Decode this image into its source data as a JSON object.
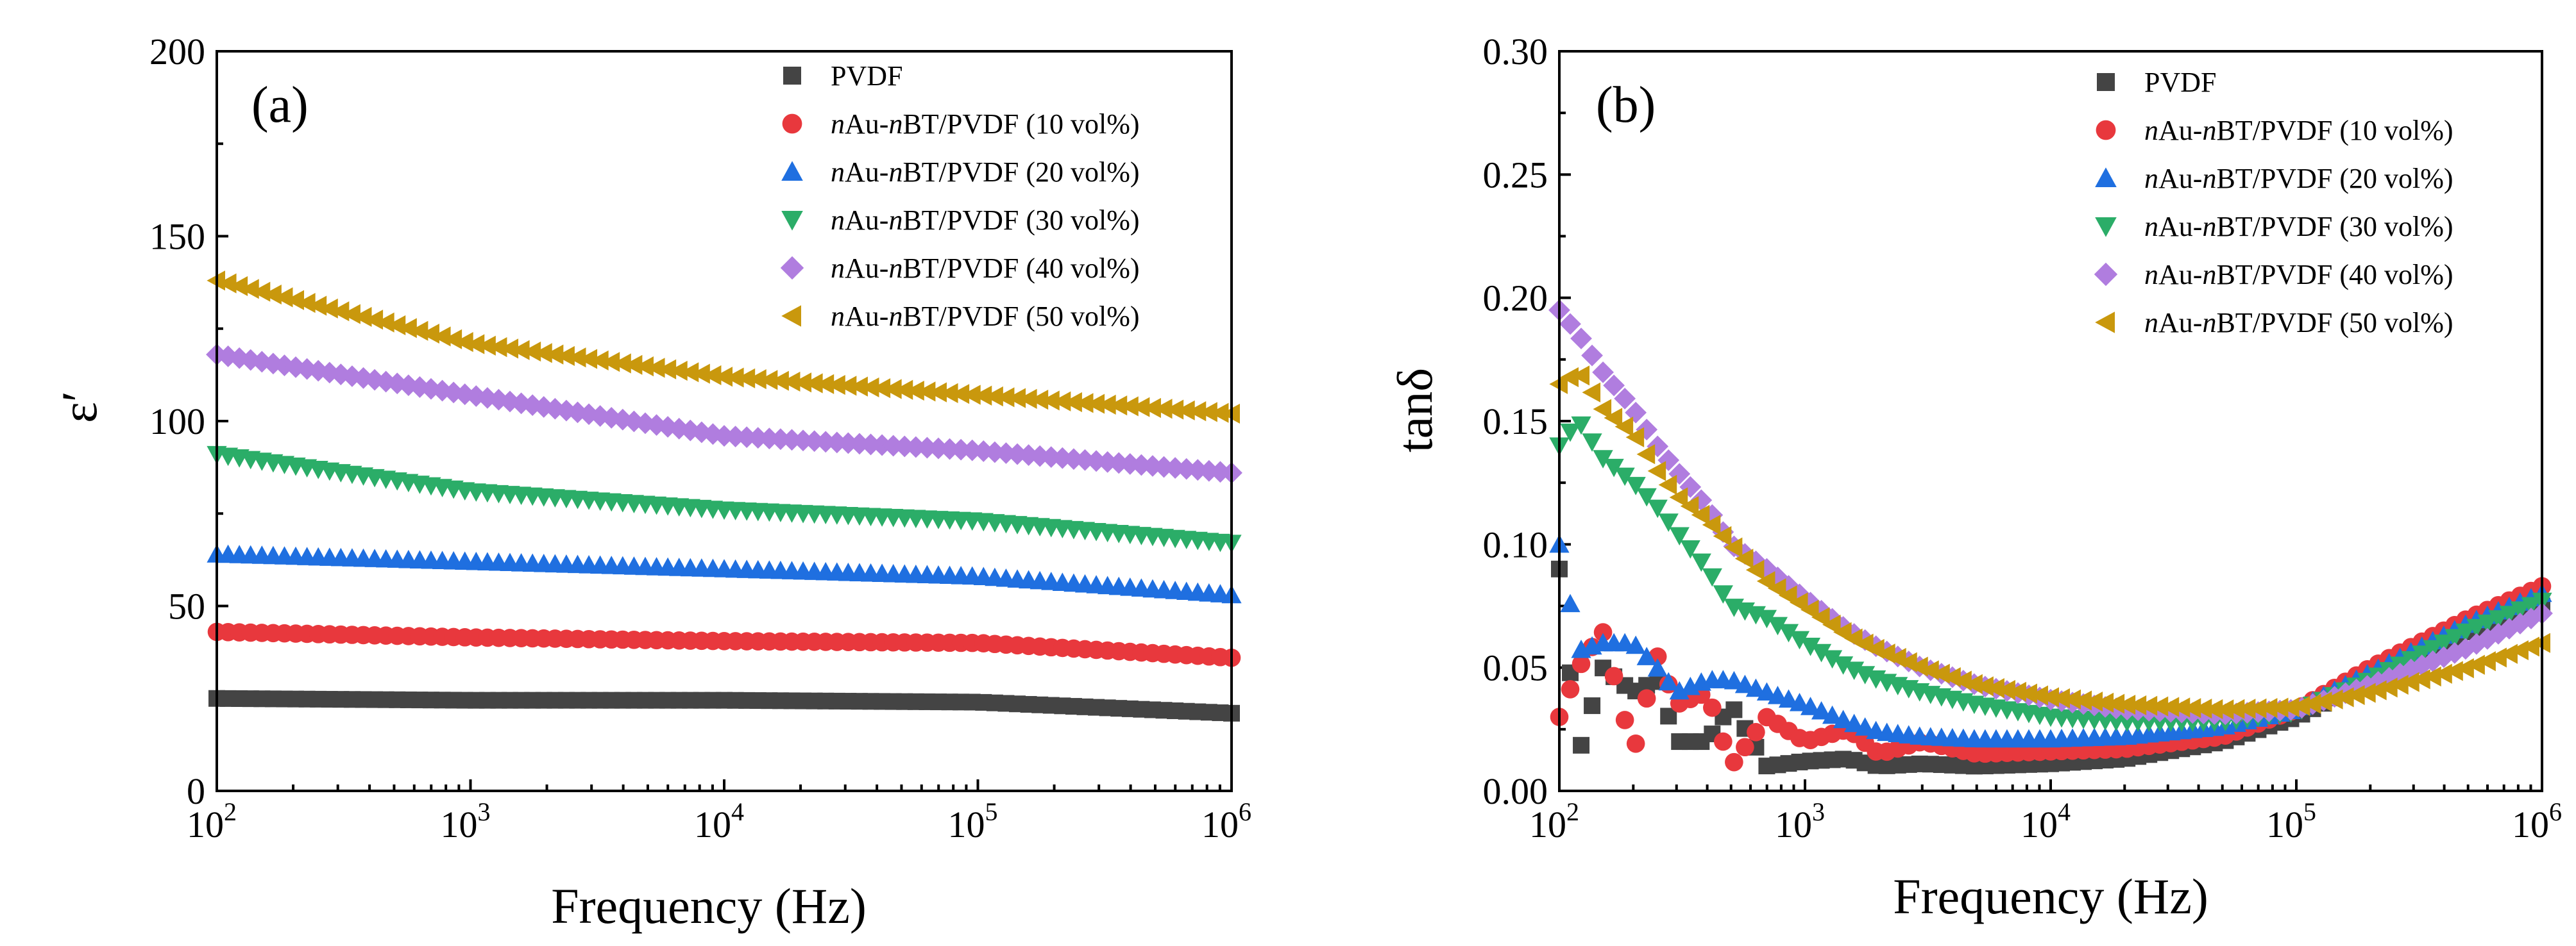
{
  "colors": {
    "PVDF": "#444444",
    "10": "#e8383d",
    "20": "#1f6fe0",
    "30": "#2bad68",
    "40": "#b07ddf",
    "50": "#c9980d"
  },
  "legend": [
    {
      "key": "PVDF",
      "label": "PVDF",
      "marker": "square"
    },
    {
      "key": "10",
      "prefix": "n",
      "mid": "Au-",
      "prefix2": "n",
      "rest": "BT/PVDF (10 vol%)",
      "marker": "circle"
    },
    {
      "key": "20",
      "prefix": "n",
      "mid": "Au-",
      "prefix2": "n",
      "rest": "BT/PVDF (20 vol%)",
      "marker": "triangle-up"
    },
    {
      "key": "30",
      "prefix": "n",
      "mid": "Au-",
      "prefix2": "n",
      "rest": "BT/PVDF (30 vol%)",
      "marker": "triangle-down"
    },
    {
      "key": "40",
      "prefix": "n",
      "mid": "Au-",
      "prefix2": "n",
      "rest": "BT/PVDF (40 vol%)",
      "marker": "diamond"
    },
    {
      "key": "50",
      "prefix": "n",
      "mid": "Au-",
      "prefix2": "n",
      "rest": "BT/PVDF (50 vol%)",
      "marker": "triangle-left"
    }
  ],
  "chart_data": [
    {
      "type": "scatter",
      "panel_label": "(a)",
      "xlabel": "Frequency (Hz)",
      "ylabel": "ε′",
      "xscale": "log",
      "xlim": [
        100,
        1000000
      ],
      "ylim": [
        0,
        200
      ],
      "yticks": [
        "0",
        "50",
        "100",
        "150",
        "200"
      ],
      "xticks": [
        {
          "base": "10",
          "exp": "2"
        },
        {
          "base": "10",
          "exp": "3"
        },
        {
          "base": "10",
          "exp": "4"
        },
        {
          "base": "10",
          "exp": "5"
        },
        {
          "base": "10",
          "exp": "6"
        }
      ],
      "legend_position": "top-right",
      "series": [
        {
          "key": "PVDF",
          "name": "PVDF",
          "x": [
            100,
            1000,
            10000,
            100000,
            1000000
          ],
          "y": [
            25,
            24.5,
            24.5,
            24,
            21
          ]
        },
        {
          "key": "10",
          "name": "nAu-nBT/PVDF (10 vol%)",
          "x": [
            100,
            1000,
            10000,
            100000,
            1000000
          ],
          "y": [
            43,
            41.5,
            40.5,
            40,
            36
          ]
        },
        {
          "key": "20",
          "name": "nAu-nBT/PVDF (20 vol%)",
          "x": [
            100,
            1000,
            10000,
            100000,
            1000000
          ],
          "y": [
            64,
            62,
            60,
            58,
            53
          ]
        },
        {
          "key": "30",
          "name": "nAu-nBT/PVDF (30 vol%)",
          "x": [
            100,
            1000,
            10000,
            100000,
            1000000
          ],
          "y": [
            91,
            81,
            76,
            73,
            67
          ]
        },
        {
          "key": "40",
          "name": "nAu-nBT/PVDF (40 vol%)",
          "x": [
            100,
            1000,
            10000,
            100000,
            1000000
          ],
          "y": [
            118,
            107,
            96,
            92,
            86
          ]
        },
        {
          "key": "50",
          "name": "nAu-nBT/PVDF (50 vol%)",
          "x": [
            100,
            1000,
            10000,
            100000,
            1000000
          ],
          "y": [
            138,
            121,
            112,
            107,
            102
          ]
        }
      ]
    },
    {
      "type": "scatter",
      "panel_label": "(b)",
      "xlabel": "Frequency (Hz)",
      "ylabel": "tanδ",
      "xscale": "log",
      "xlim": [
        100,
        1000000
      ],
      "ylim": [
        0,
        0.3
      ],
      "yticks": [
        "0.00",
        "0.05",
        "0.10",
        "0.15",
        "0.20",
        "0.25",
        "0.30"
      ],
      "xticks": [
        {
          "base": "10",
          "exp": "2"
        },
        {
          "base": "10",
          "exp": "3"
        },
        {
          "base": "10",
          "exp": "4"
        },
        {
          "base": "10",
          "exp": "5"
        },
        {
          "base": "10",
          "exp": "6"
        }
      ],
      "legend_position": "top-right",
      "series": [
        {
          "key": "PVDF",
          "name": "PVDF",
          "x": [
            100,
            120,
            150,
            200,
            250,
            300,
            400,
            500,
            700,
            1000,
            1500,
            2000,
            3000,
            5000,
            10000,
            20000,
            50000,
            100000,
            200000,
            500000,
            1000000
          ],
          "y": [
            0.09,
            0.015,
            0.05,
            0.04,
            0.045,
            0.02,
            0.02,
            0.035,
            0.01,
            0.012,
            0.013,
            0.01,
            0.011,
            0.01,
            0.011,
            0.013,
            0.02,
            0.03,
            0.045,
            0.065,
            0.075
          ]
        },
        {
          "key": "10",
          "name": "nAu-nBT/PVDF (10 vol%)",
          "x": [
            100,
            120,
            150,
            200,
            250,
            300,
            400,
            500,
            700,
            1000,
            1500,
            2000,
            3000,
            5000,
            10000,
            20000,
            50000,
            100000,
            200000,
            500000,
            1000000
          ],
          "y": [
            0.03,
            0.05,
            0.065,
            0.015,
            0.055,
            0.035,
            0.04,
            0.01,
            0.03,
            0.02,
            0.025,
            0.015,
            0.02,
            0.015,
            0.016,
            0.017,
            0.022,
            0.033,
            0.05,
            0.07,
            0.083
          ]
        },
        {
          "key": "20",
          "name": "nAu-nBT/PVDF (20 vol%)",
          "x": [
            100,
            120,
            150,
            200,
            250,
            300,
            400,
            500,
            700,
            1000,
            1500,
            2000,
            3000,
            5000,
            10000,
            20000,
            50000,
            100000,
            200000,
            500000,
            1000000
          ],
          "y": [
            0.1,
            0.057,
            0.06,
            0.06,
            0.05,
            0.04,
            0.045,
            0.045,
            0.04,
            0.035,
            0.028,
            0.024,
            0.022,
            0.021,
            0.021,
            0.022,
            0.026,
            0.033,
            0.048,
            0.068,
            0.08
          ]
        },
        {
          "key": "30",
          "name": "nAu-nBT/PVDF (30 vol%)",
          "x": [
            100,
            120,
            150,
            200,
            250,
            300,
            400,
            500,
            700,
            1000,
            1500,
            2000,
            3000,
            5000,
            10000,
            20000,
            50000,
            100000,
            200000,
            500000,
            1000000
          ],
          "y": [
            0.14,
            0.15,
            0.135,
            0.125,
            0.115,
            0.105,
            0.09,
            0.075,
            0.07,
            0.06,
            0.05,
            0.045,
            0.04,
            0.035,
            0.03,
            0.028,
            0.028,
            0.032,
            0.045,
            0.065,
            0.077
          ]
        },
        {
          "key": "40",
          "name": "nAu-nBT/PVDF (40 vol%)",
          "x": [
            100,
            120,
            150,
            200,
            250,
            300,
            400,
            500,
            700,
            1000,
            1500,
            2000,
            3000,
            5000,
            10000,
            20000,
            50000,
            100000,
            200000,
            500000,
            1000000
          ],
          "y": [
            0.195,
            0.185,
            0.17,
            0.155,
            0.14,
            0.13,
            0.115,
            0.1,
            0.09,
            0.078,
            0.065,
            0.058,
            0.05,
            0.043,
            0.037,
            0.033,
            0.031,
            0.033,
            0.043,
            0.058,
            0.072
          ]
        },
        {
          "key": "50",
          "name": "nAu-nBT/PVDF (50 vol%)",
          "x": [
            100,
            120,
            150,
            200,
            250,
            300,
            400,
            500,
            700,
            1000,
            1500,
            2000,
            3000,
            5000,
            10000,
            20000,
            50000,
            100000,
            200000,
            500000,
            1000000
          ],
          "y": [
            0.165,
            0.17,
            0.155,
            0.145,
            0.13,
            0.12,
            0.11,
            0.1,
            0.085,
            0.075,
            0.063,
            0.057,
            0.05,
            0.043,
            0.038,
            0.035,
            0.033,
            0.034,
            0.04,
            0.05,
            0.06
          ]
        }
      ]
    }
  ]
}
